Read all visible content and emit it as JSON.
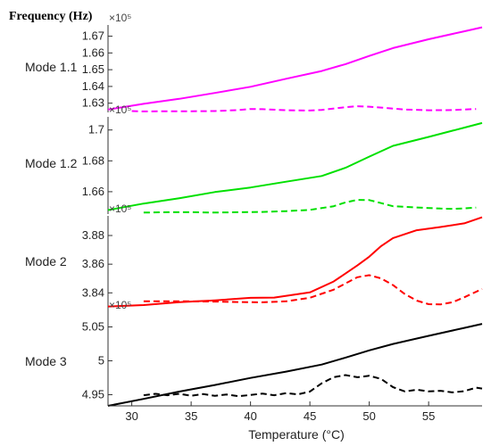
{
  "chart_data": {
    "type": "line",
    "title": "Frequency (Hz)",
    "xlabel": "Temperature (°C)",
    "xlim": [
      28,
      59.5
    ],
    "x_ticks": [
      "30",
      "35",
      "40",
      "45",
      "50",
      "55"
    ],
    "x_tick_values": [
      30,
      35,
      40,
      45,
      50,
      55
    ],
    "grid": false,
    "panels": [
      {
        "label": "Mode 1.1",
        "exponent": "×10⁵",
        "ylim": [
          1.6245,
          1.6767
        ],
        "y_ticks": [
          "1.63",
          "1.64",
          "1.65",
          "1.66",
          "1.67"
        ],
        "y_tick_values": [
          1.63,
          1.64,
          1.65,
          1.66,
          1.67
        ],
        "series": [
          {
            "style": "solid",
            "color": "#ff00ff",
            "x": [
              28,
              31,
              34,
              37,
              40,
              43,
              46,
              48,
              50,
              52,
              55,
              58,
              59.5
            ],
            "y": [
              1.6262,
              1.6296,
              1.6326,
              1.6361,
              1.6398,
              1.6446,
              1.6492,
              1.6533,
              1.6582,
              1.6629,
              1.6682,
              1.6729,
              1.6753
            ]
          },
          {
            "style": "dashed",
            "color": "#ff00ff",
            "x": [
              30,
              31,
              33,
              35,
              37,
              39,
              40,
              41,
              43,
              45,
              46,
              48,
              49,
              50,
              51,
              53,
              55,
              57,
              59
            ],
            "y": [
              1.6253,
              1.6251,
              1.6252,
              1.6252,
              1.6253,
              1.6259,
              1.6265,
              1.6264,
              1.6258,
              1.6256,
              1.626,
              1.6276,
              1.6282,
              1.6279,
              1.6274,
              1.6262,
              1.6258,
              1.6259,
              1.6265
            ]
          }
        ]
      },
      {
        "label": "Mode 1.2",
        "exponent": "×10⁵",
        "ylim": [
          1.6455,
          1.7085
        ],
        "y_ticks": [
          "1.66",
          "1.68",
          "1.7"
        ],
        "y_tick_values": [
          1.66,
          1.68,
          1.7
        ],
        "series": [
          {
            "style": "solid",
            "color": "#00e000",
            "x": [
              28,
              31,
              34,
              37,
              40,
              43,
              46,
              48,
              50,
              52,
              55,
              58,
              59.5
            ],
            "y": [
              1.6481,
              1.6523,
              1.6558,
              1.6598,
              1.6627,
              1.6665,
              1.6702,
              1.6755,
              1.6827,
              1.6897,
              1.6955,
              1.7015,
              1.7045
            ]
          },
          {
            "style": "dashed",
            "color": "#00e000",
            "x": [
              31,
              33,
              35,
              37,
              39,
              41,
              43,
              45,
              47,
              48,
              49,
              50,
              51,
              52,
              54,
              56,
              57,
              58,
              59
            ],
            "y": [
              1.6465,
              1.6467,
              1.6467,
              1.6465,
              1.6467,
              1.6469,
              1.6474,
              1.6482,
              1.6506,
              1.6531,
              1.6547,
              1.6546,
              1.6526,
              1.6506,
              1.6498,
              1.6491,
              1.6489,
              1.6492,
              1.6497
            ]
          }
        ]
      },
      {
        "label": "Mode 2",
        "exponent": "×10⁵",
        "ylim": [
          3.8265,
          3.8937
        ],
        "y_ticks": [
          "3.84",
          "3.86",
          "3.88"
        ],
        "y_tick_values": [
          3.84,
          3.86,
          3.88
        ],
        "series": [
          {
            "style": "solid",
            "color": "#ff0000",
            "x": [
              28,
              31,
              34,
              37,
              40,
              42,
              45,
              47,
              49,
              50,
              51,
              52,
              54,
              56,
              58,
              59.5
            ],
            "y": [
              3.8305,
              3.8315,
              3.8335,
              3.8348,
              3.8365,
              3.8367,
              3.8403,
              3.8479,
              3.8591,
              3.8652,
              3.8726,
              3.8782,
              3.8837,
              3.8859,
              3.8885,
              3.8927
            ]
          },
          {
            "style": "dashed",
            "color": "#ff0000",
            "x": [
              31,
              33,
              35,
              37,
              39,
              41,
              43,
              45,
              47,
              49,
              50,
              51,
              52,
              53,
              54,
              55,
              56,
              57,
              58,
              59.5
            ],
            "y": [
              3.8341,
              3.8341,
              3.8341,
              3.8339,
              3.8336,
              3.8334,
              3.8341,
              3.8366,
              3.8422,
              3.8509,
              3.8523,
              3.8501,
              3.8454,
              3.8391,
              3.8346,
              3.8321,
              3.8319,
              3.8334,
              3.8369,
              3.8427
            ]
          }
        ]
      },
      {
        "label": "Mode 3",
        "exponent": "×10⁵",
        "ylim": [
          4.9335,
          5.0717
        ],
        "y_ticks": [
          "4.95",
          "5",
          "5.05"
        ],
        "y_tick_values": [
          4.95,
          5,
          5.05
        ],
        "series": [
          {
            "style": "solid",
            "color": "#000000",
            "x": [
              28,
              31,
              34,
              37,
              40,
              43,
              46,
              48,
              50,
              52,
              55,
              58,
              59.5
            ],
            "y": [
              4.9335,
              4.9438,
              4.9546,
              4.9643,
              4.9747,
              4.9841,
              4.9945,
              5.0047,
              5.0154,
              5.0249,
              5.0368,
              5.0485,
              5.0545
            ]
          },
          {
            "style": "dashed",
            "color": "#000000",
            "x": [
              31,
              32,
              33,
              34,
              35,
              36,
              37,
              38,
              39,
              40,
              41,
              42,
              43,
              44,
              45,
              46,
              47,
              48,
              49,
              50,
              51,
              52,
              53,
              54,
              55,
              56,
              57,
              58,
              59,
              59.5
            ],
            "y": [
              4.9491,
              4.9513,
              4.9491,
              4.9513,
              4.9484,
              4.9509,
              4.9484,
              4.9502,
              4.9477,
              4.9495,
              4.9516,
              4.9491,
              4.9523,
              4.9505,
              4.9545,
              4.9668,
              4.9758,
              4.9789,
              4.9758,
              4.9779,
              4.9733,
              4.9611,
              4.9548,
              4.9573,
              4.9548,
              4.9558,
              4.9534,
              4.9552,
              4.9604,
              4.959
            ]
          }
        ]
      }
    ]
  }
}
